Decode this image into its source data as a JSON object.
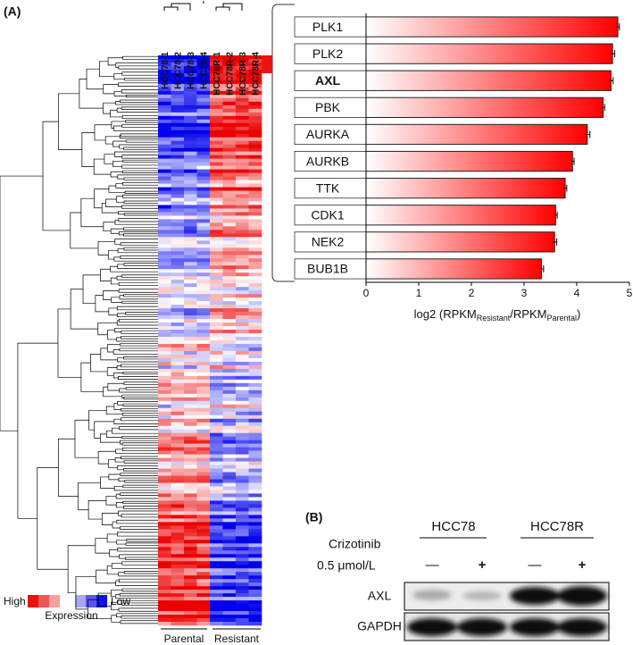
{
  "panel_a_label": "(A)",
  "heatmap": {
    "columns": [
      "HCC78-1",
      "HCC78-2",
      "HCC78-3",
      "HCC78-4",
      "HCC78R-1",
      "HCC78R-2",
      "HCC78R-3",
      "HCC78R-4"
    ],
    "groups": [
      "Parental",
      "Resistant"
    ],
    "legend": {
      "high": "High",
      "low": "Low",
      "title": "Expression"
    }
  },
  "chart_data": {
    "type": "bar",
    "orientation": "horizontal",
    "categories": [
      "PLK1",
      "PLK2",
      "AXL",
      "PBK",
      "AURKA",
      "AURKB",
      "TTK",
      "CDK1",
      "NEK2",
      "BUB1B"
    ],
    "values": [
      4.78,
      4.68,
      4.65,
      4.5,
      4.2,
      3.92,
      3.78,
      3.6,
      3.58,
      3.33
    ],
    "errors": [
      0.03,
      0.04,
      0.04,
      0.03,
      0.05,
      0.03,
      0.03,
      0.03,
      0.04,
      0.04
    ],
    "color": "#ff0000",
    "bold_index": 2,
    "xlabel_parts": [
      "log2 (RPKM",
      "Resistant",
      "/RPKM",
      "Parental",
      ")"
    ],
    "xlim": [
      0,
      5
    ],
    "xticks": [
      0,
      1,
      2,
      3,
      4,
      5
    ]
  },
  "blot": {
    "label": "(B)",
    "cell_lines": [
      "HCC78",
      "HCC78R"
    ],
    "treatment": "Crizotinib",
    "dose": "0.5 μmol/L",
    "conditions": [
      "—",
      "+",
      "—",
      "+"
    ],
    "rows": [
      "AXL",
      "GAPDH"
    ]
  }
}
